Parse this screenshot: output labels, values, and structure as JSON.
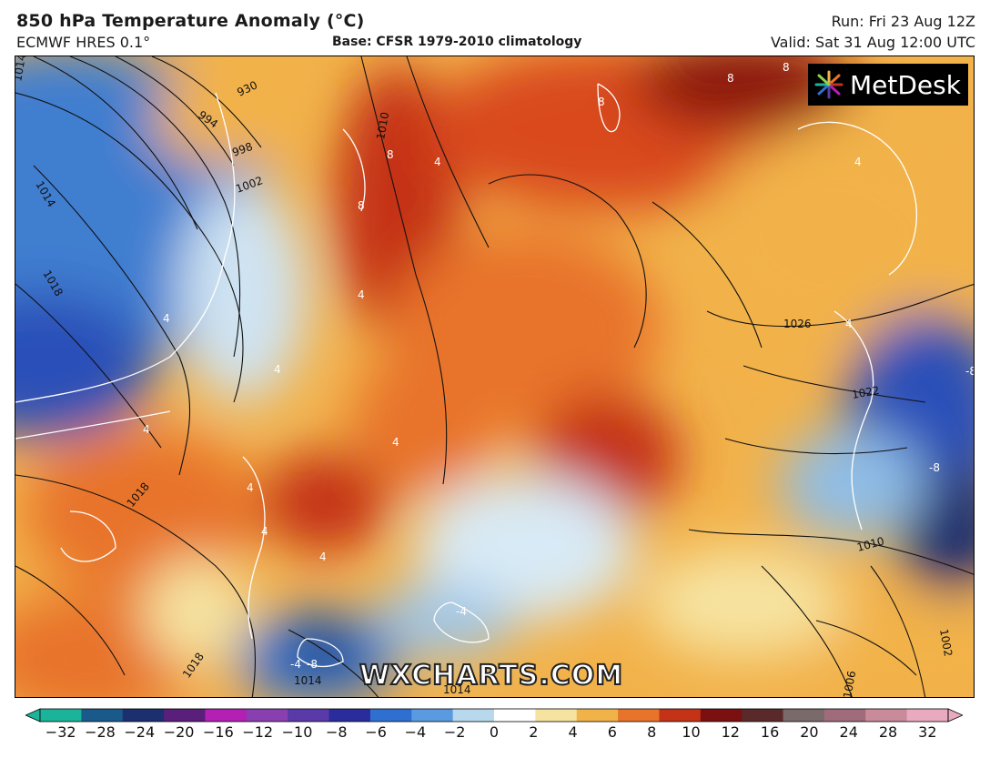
{
  "header": {
    "title": "850 hPa Temperature Anomaly (°C)",
    "model": "ECMWF HRES 0.1°",
    "base": "Base: CFSR 1979-2010 climatology",
    "run": "Run: Fri 23 Aug 12Z",
    "valid": "Valid: Sat 31 Aug 12:00 UTC"
  },
  "branding": {
    "logo_text": "MetDesk",
    "watermark": "WXCHARTS.COM"
  },
  "isobar_labels": [
    "1014",
    "930",
    "994",
    "998",
    "1002",
    "1014",
    "1018",
    "1010",
    "1026",
    "1022",
    "1018",
    "1018",
    "1014",
    "1010",
    "1002",
    "1006",
    "1014"
  ],
  "anomaly_labels": [
    "8",
    "8",
    "8",
    "8",
    "8",
    "4",
    "4",
    "4",
    "4",
    "4",
    "4",
    "4",
    "4",
    "4",
    "4",
    "4",
    "-4",
    "-4",
    "-8",
    "-8",
    "-8"
  ],
  "colorbar": {
    "ticks": [
      "−32",
      "−28",
      "−24",
      "−20",
      "−16",
      "−12",
      "−10",
      "−8",
      "−6",
      "−4",
      "−2",
      "0",
      "2",
      "4",
      "6",
      "8",
      "10",
      "12",
      "16",
      "20",
      "24",
      "28",
      "32"
    ],
    "colors": [
      "#1bb49a",
      "#1a5a8a",
      "#1c2f6e",
      "#5a1f7a",
      "#b41fb4",
      "#8a3fb0",
      "#5a3aa8",
      "#2a2c9c",
      "#2f6fd0",
      "#5a9ae0",
      "#b8d8ee",
      "#ffffff",
      "#f6e3a0",
      "#f2b24a",
      "#e8732a",
      "#c43218",
      "#7a1010",
      "#5a2a2a",
      "#7a6a6a",
      "#a06b7a",
      "#c98a9a",
      "#e9a9bf"
    ]
  }
}
